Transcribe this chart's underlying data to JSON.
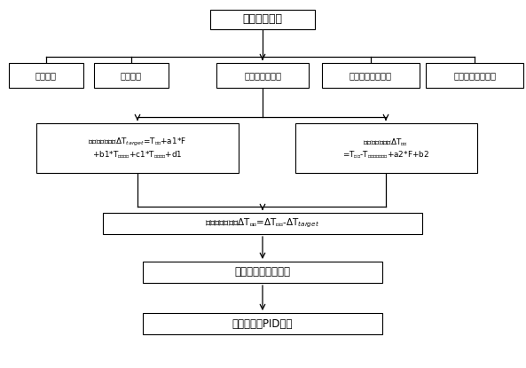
{
  "title": "空调开启运行",
  "row2_boxes": [
    "吸气温度",
    "排气温度",
    "压缩机运行频率",
    "室内侧换热器温度",
    "室外侧换热器温度"
  ],
  "row5_box": "动态过热度模糊控制",
  "row6_box": "动态过热度PID控制",
  "bg_color": "#ffffff",
  "box_color": "#ffffff",
  "box_edge": "#000000",
  "text_color": "#000000",
  "arrow_color": "#000000"
}
